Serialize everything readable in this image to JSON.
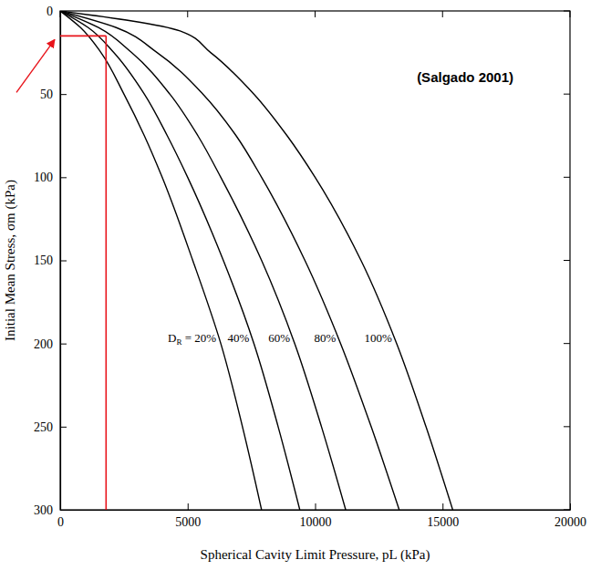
{
  "chart_data": {
    "type": "line",
    "title": "(Salgado 2001)",
    "x_label": "Spherical Cavity Limit Pressure, pL (kPa)",
    "y_label": "Initial Mean Stress, σm (kPa)",
    "xlim": [
      0,
      20000
    ],
    "xticks": [
      0,
      5000,
      10000,
      15000,
      20000
    ],
    "ylim": [
      0,
      300
    ],
    "yticks": [
      0,
      50,
      100,
      150,
      200,
      250,
      300
    ],
    "grid": false,
    "series": [
      {
        "name": "DR = 20%",
        "color": "#000000",
        "x": [
          0,
          800,
          1600,
          2500,
          3300,
          4000,
          5200,
          6300,
          7150,
          7900
        ],
        "values": [
          0,
          10,
          25,
          50,
          75,
          100,
          150,
          200,
          250,
          300
        ]
      },
      {
        "name": "40%",
        "color": "#000000",
        "x": [
          0,
          1100,
          2100,
          3300,
          4200,
          5000,
          6400,
          7600,
          8550,
          9400
        ],
        "values": [
          0,
          10,
          25,
          50,
          75,
          100,
          150,
          200,
          250,
          300
        ]
      },
      {
        "name": "60%",
        "color": "#000000",
        "x": [
          0,
          1500,
          2800,
          4300,
          5400,
          6300,
          7900,
          9200,
          10250,
          11200
        ],
        "values": [
          0,
          10,
          25,
          50,
          75,
          100,
          150,
          200,
          250,
          300
        ]
      },
      {
        "name": "80%",
        "color": "#000000",
        "x": [
          0,
          2200,
          3800,
          5600,
          6900,
          7900,
          9600,
          11000,
          12200,
          13300
        ],
        "values": [
          0,
          10,
          25,
          50,
          75,
          100,
          150,
          200,
          250,
          300
        ]
      },
      {
        "name": "100%",
        "color": "#000000",
        "x": [
          0,
          4700,
          5900,
          7600,
          8900,
          10000,
          11800,
          13200,
          14350,
          15400
        ],
        "values": [
          0,
          12,
          25,
          50,
          75,
          100,
          150,
          200,
          250,
          300
        ]
      }
    ],
    "reference_point": {
      "x": 1800,
      "y": 15,
      "color": "#e8141b"
    }
  }
}
